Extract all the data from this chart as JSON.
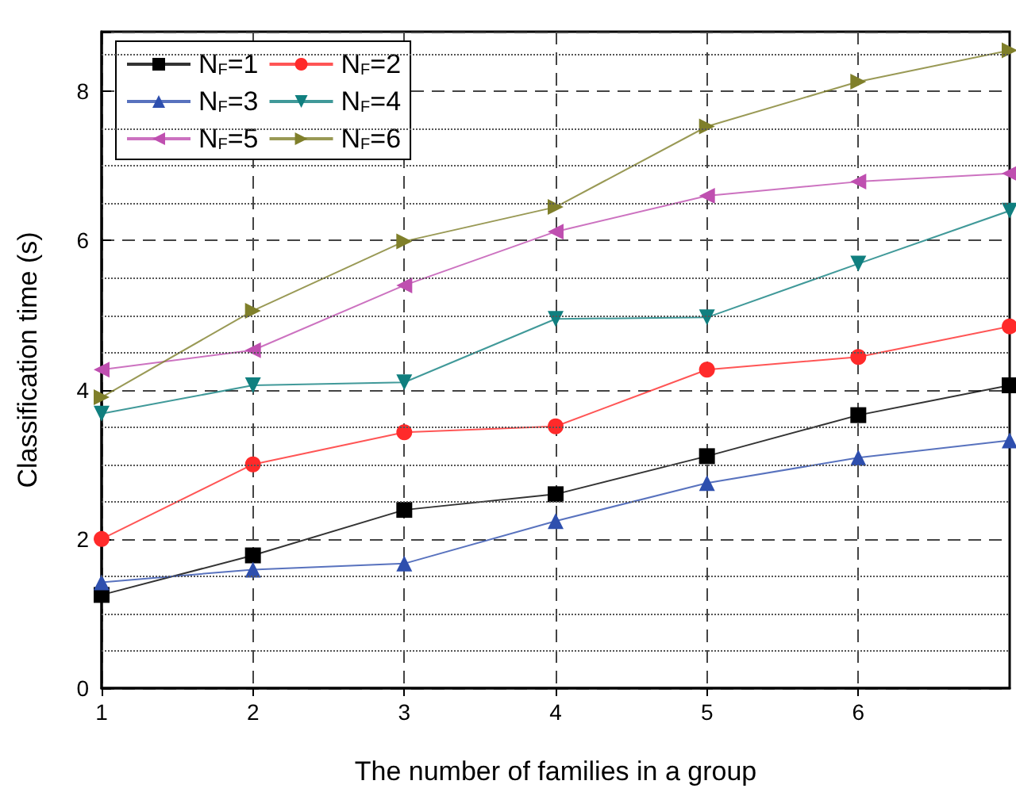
{
  "chart_data": {
    "type": "line",
    "xlabel": "The number of families in a group",
    "ylabel": "Classification time (s)",
    "x": [
      1,
      2,
      3,
      4,
      5,
      6,
      7
    ],
    "xlim": [
      1,
      7
    ],
    "xticks": [
      1,
      2,
      3,
      4,
      5,
      6
    ],
    "ylim": [
      0,
      8.8
    ],
    "yticks": [
      0,
      {
        "value": 0.5,
        "label": null
      },
      {
        "value": 1,
        "label": null
      },
      {
        "value": 1.5,
        "label": null
      },
      2,
      {
        "value": 2.5,
        "label": null
      },
      {
        "value": 3,
        "label": null
      },
      {
        "value": 3.5,
        "label": null
      },
      4,
      {
        "value": 4.5,
        "label": null
      },
      {
        "value": 5,
        "label": null
      },
      {
        "value": 5.5,
        "label": null
      },
      6,
      {
        "value": 6.5,
        "label": null
      },
      {
        "value": 7,
        "label": null
      },
      {
        "value": 7.5,
        "label": null
      },
      8,
      {
        "value": 8.5,
        "label": null
      }
    ],
    "grid": true,
    "legend": "top left",
    "series": [
      {
        "name": "N$_{F}$=1",
        "color": "#000000",
        "marker": "square",
        "values": [
          1.25,
          1.78,
          2.39,
          2.6,
          3.11,
          3.66,
          4.06
        ]
      },
      {
        "name": "N$_{F}$=2",
        "color": "#ff2a2a",
        "marker": "circle",
        "values": [
          2.0,
          3.0,
          3.43,
          3.51,
          4.27,
          4.44,
          4.85
        ]
      },
      {
        "name": "N$_{F}$=3",
        "color": "#2e4fae",
        "marker": "triangle",
        "values": [
          1.42,
          1.59,
          1.67,
          2.24,
          2.75,
          3.09,
          3.32
        ]
      },
      {
        "name": "N$_{F}$=4",
        "color": "#107f7f",
        "marker": "triangle-down",
        "values": [
          3.68,
          4.06,
          4.1,
          4.95,
          4.97,
          5.69,
          6.4
        ]
      },
      {
        "name": "N$_{F}$=5",
        "color": "#bf4fb0",
        "marker": "triangle-left",
        "values": [
          4.27,
          4.53,
          5.4,
          6.12,
          6.6,
          6.79,
          6.9
        ]
      },
      {
        "name": "N$_{F}$=6",
        "color": "#7f7f2a",
        "marker": "triangle-right",
        "values": [
          3.9,
          5.06,
          5.99,
          6.45,
          7.53,
          8.13,
          8.55
        ]
      }
    ]
  }
}
